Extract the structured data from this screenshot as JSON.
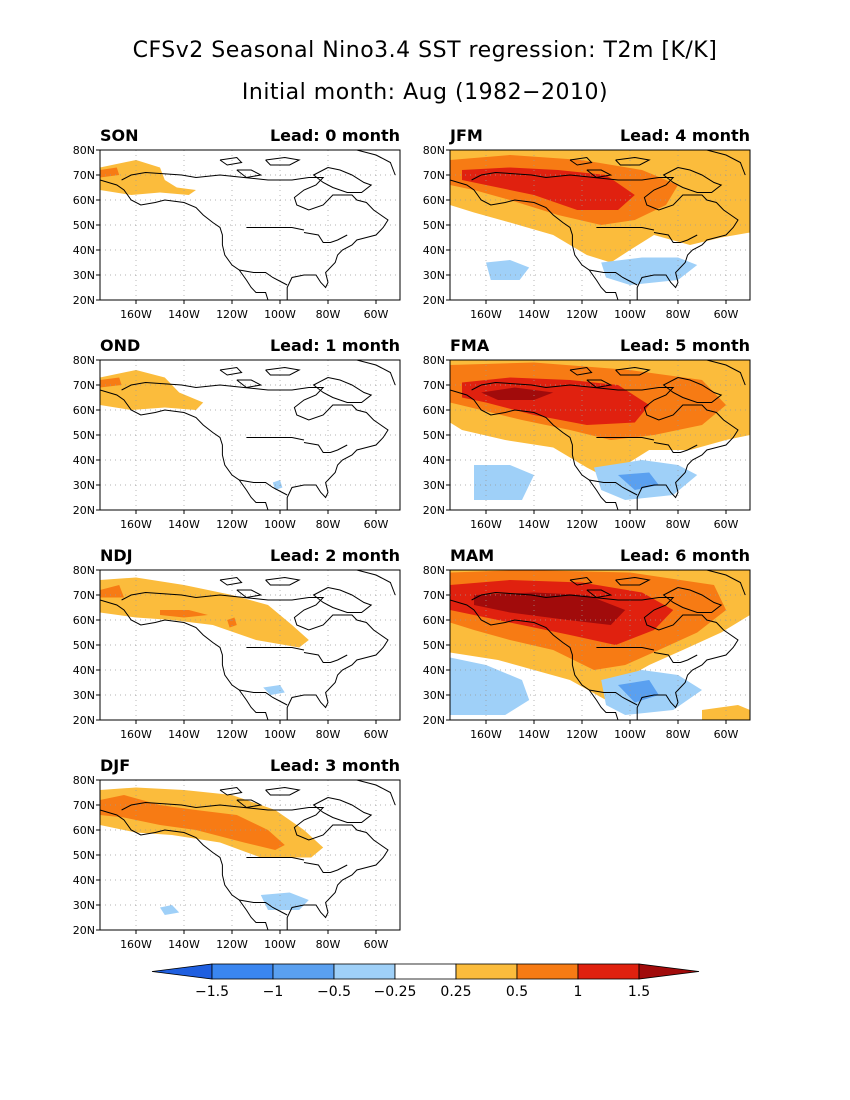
{
  "title": {
    "line1": "CFSv2 Seasonal Nino3.4 SST regression: T2m [K/K]",
    "line2": "Initial month: Aug (1982−2010)"
  },
  "axes": {
    "lat_labels": [
      "80N",
      "70N",
      "60N",
      "50N",
      "40N",
      "30N",
      "20N"
    ],
    "lon_labels": [
      "160W",
      "140W",
      "120W",
      "100W",
      "80W",
      "60W"
    ]
  },
  "colors": {
    "levels": [
      "#1f5fe0",
      "#3a86f0",
      "#5aa0f0",
      "#9fd0f8",
      "#ffffff",
      "#fbbc3c",
      "#f77b14",
      "#e0210f",
      "#a10b0b"
    ],
    "coast": "#000000",
    "grid": "#999999"
  },
  "panels": [
    {
      "id": "son",
      "season": "SON",
      "lead": "Lead: 0 month"
    },
    {
      "id": "ond",
      "season": "OND",
      "lead": "Lead: 1 month"
    },
    {
      "id": "ndj",
      "season": "NDJ",
      "lead": "Lead: 2 month"
    },
    {
      "id": "djf",
      "season": "DJF",
      "lead": "Lead: 3 month"
    },
    {
      "id": "jfm",
      "season": "JFM",
      "lead": "Lead: 4 month"
    },
    {
      "id": "fma",
      "season": "FMA",
      "lead": "Lead: 5 month"
    },
    {
      "id": "mam",
      "season": "MAM",
      "lead": "Lead: 6 month"
    }
  ],
  "colorbar": {
    "labels": [
      "−1.5",
      "−1",
      "−0.5",
      "−0.25",
      "0.25",
      "0.5",
      "1",
      "1.5"
    ]
  }
}
